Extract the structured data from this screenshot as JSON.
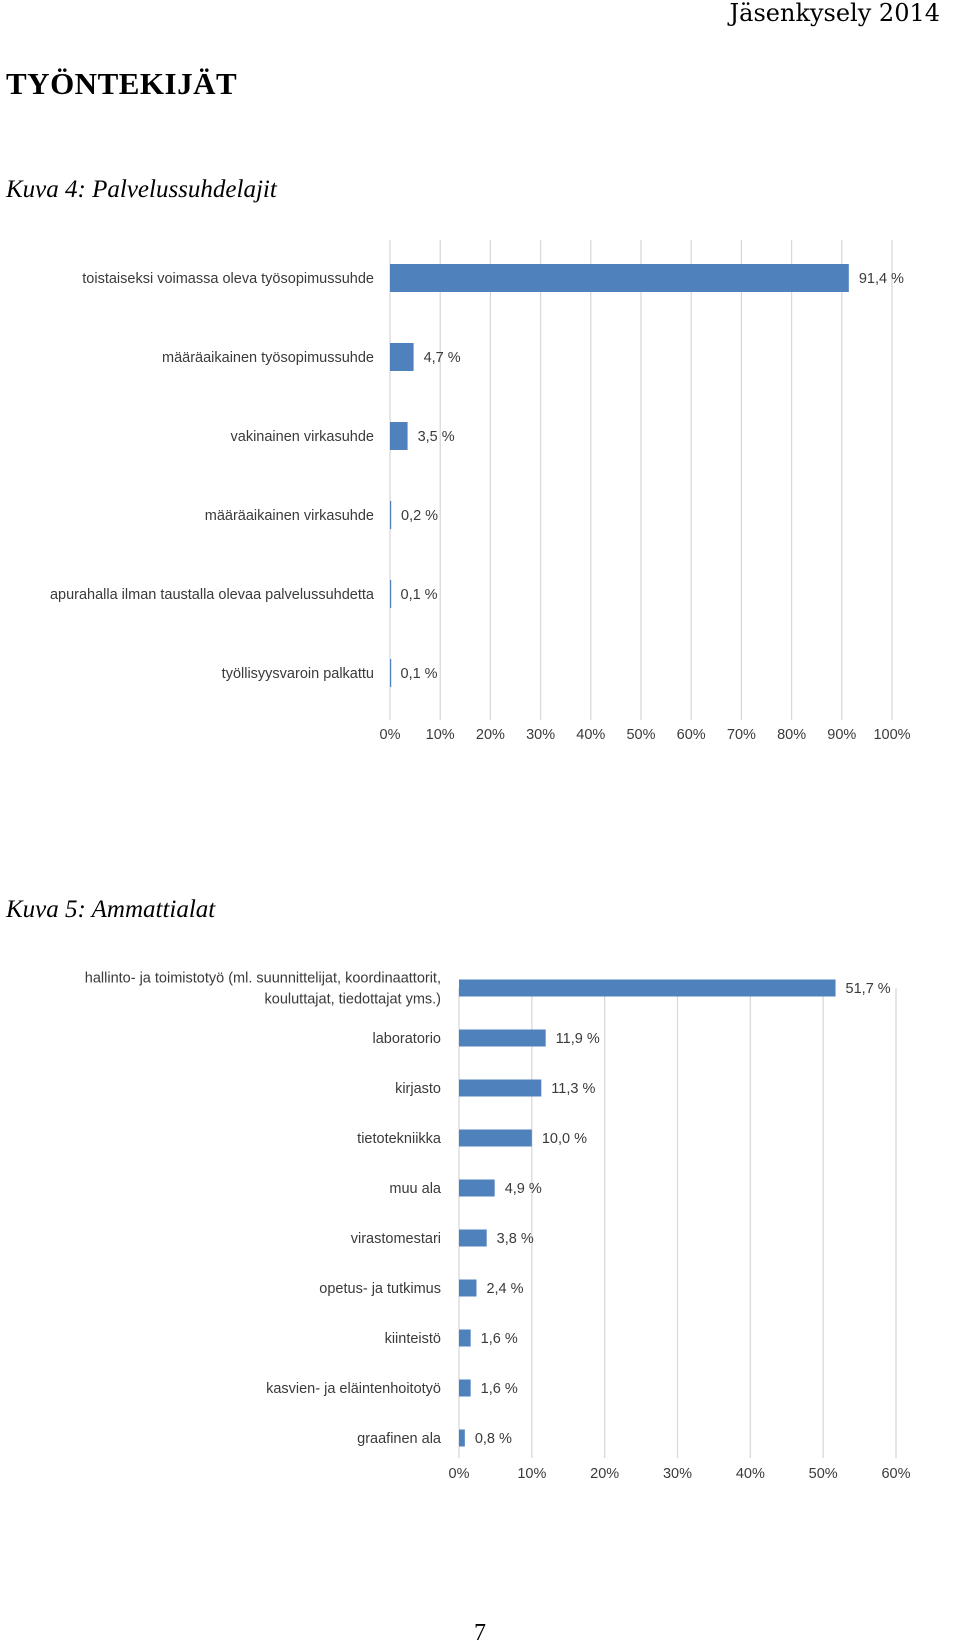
{
  "header": {
    "title": "Jäsenkysely 2014"
  },
  "section_title": "TYÖNTEKIJÄT",
  "captions": {
    "figure4": "Kuva 4: Palvelussuhdelajit",
    "figure5": "Kuva 5: Ammattialat"
  },
  "page_number": "7",
  "colors": {
    "bar": "#4f81bd",
    "grid": "#d9d9d9",
    "text": "#3a3a3a"
  },
  "chart_data": [
    {
      "type": "bar",
      "orientation": "horizontal",
      "title": "",
      "xlim": [
        0,
        100
      ],
      "grid": true,
      "categories": [
        [
          "toistaiseksi voimassa oleva työsopimussuhde"
        ],
        [
          "määräaikainen työsopimussuhde"
        ],
        [
          "vakinainen virkasuhde"
        ],
        [
          "määräaikainen virkasuhde"
        ],
        [
          "apurahalla ilman taustalla olevaa palvelussuhdetta"
        ],
        [
          "työllisyysvaroin palkattu"
        ]
      ],
      "values": [
        91.4,
        4.7,
        3.5,
        0.2,
        0.1,
        0.1
      ],
      "value_labels": [
        "91,4 %",
        "4,7 %",
        "3,5 %",
        "0,2 %",
        "0,1 %",
        "0,1 %"
      ],
      "ticks": [
        "0%",
        "10%",
        "20%",
        "30%",
        "40%",
        "50%",
        "60%",
        "70%",
        "80%",
        "90%",
        "100%"
      ]
    },
    {
      "type": "bar",
      "orientation": "horizontal",
      "title": "",
      "xlim": [
        0,
        60
      ],
      "grid": true,
      "categories": [
        [
          "hallinto- ja toimistotyö (ml. suunnittelijat, koordinaattorit,",
          "kouluttajat, tiedottajat yms.)"
        ],
        [
          "laboratorio"
        ],
        [
          "kirjasto"
        ],
        [
          "tietotekniikka"
        ],
        [
          "muu ala"
        ],
        [
          "virastomestari"
        ],
        [
          "opetus- ja tutkimus"
        ],
        [
          "kiinteistö"
        ],
        [
          "kasvien- ja eläintenhoitotyö"
        ],
        [
          "graafinen ala"
        ]
      ],
      "values": [
        51.7,
        11.9,
        11.3,
        10.0,
        4.9,
        3.8,
        2.4,
        1.6,
        1.6,
        0.8
      ],
      "value_labels": [
        "51,7 %",
        "11,9 %",
        "11,3 %",
        "10,0 %",
        "4,9 %",
        "3,8 %",
        "2,4 %",
        "1,6 %",
        "1,6 %",
        "0,8 %"
      ],
      "ticks": [
        "0%",
        "10%",
        "20%",
        "30%",
        "40%",
        "50%",
        "60%"
      ]
    }
  ]
}
